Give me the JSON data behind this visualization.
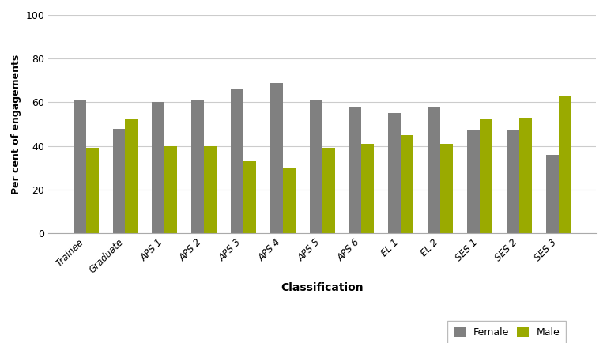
{
  "categories": [
    "Trainee",
    "Graduate",
    "APS 1",
    "APS 2",
    "APS 3",
    "APS 4",
    "APS 5",
    "APS 6",
    "EL 1",
    "EL 2",
    "SES 1",
    "SES 2",
    "SES 3"
  ],
  "female": [
    61,
    48,
    60,
    61,
    66,
    69,
    61,
    58,
    55,
    58,
    47,
    47,
    36
  ],
  "male": [
    39,
    52,
    40,
    40,
    33,
    30,
    39,
    41,
    45,
    41,
    52,
    53,
    63
  ],
  "female_color": "#808080",
  "male_color": "#9aaa00",
  "xlabel": "Classification",
  "ylabel": "Per cent of engagements",
  "ylim": [
    0,
    100
  ],
  "yticks": [
    0,
    20,
    40,
    60,
    80,
    100
  ],
  "legend_labels": [
    "Female",
    "Male"
  ],
  "bar_width": 0.32,
  "background_color": "#ffffff",
  "grid_color": "#cccccc",
  "title": ""
}
